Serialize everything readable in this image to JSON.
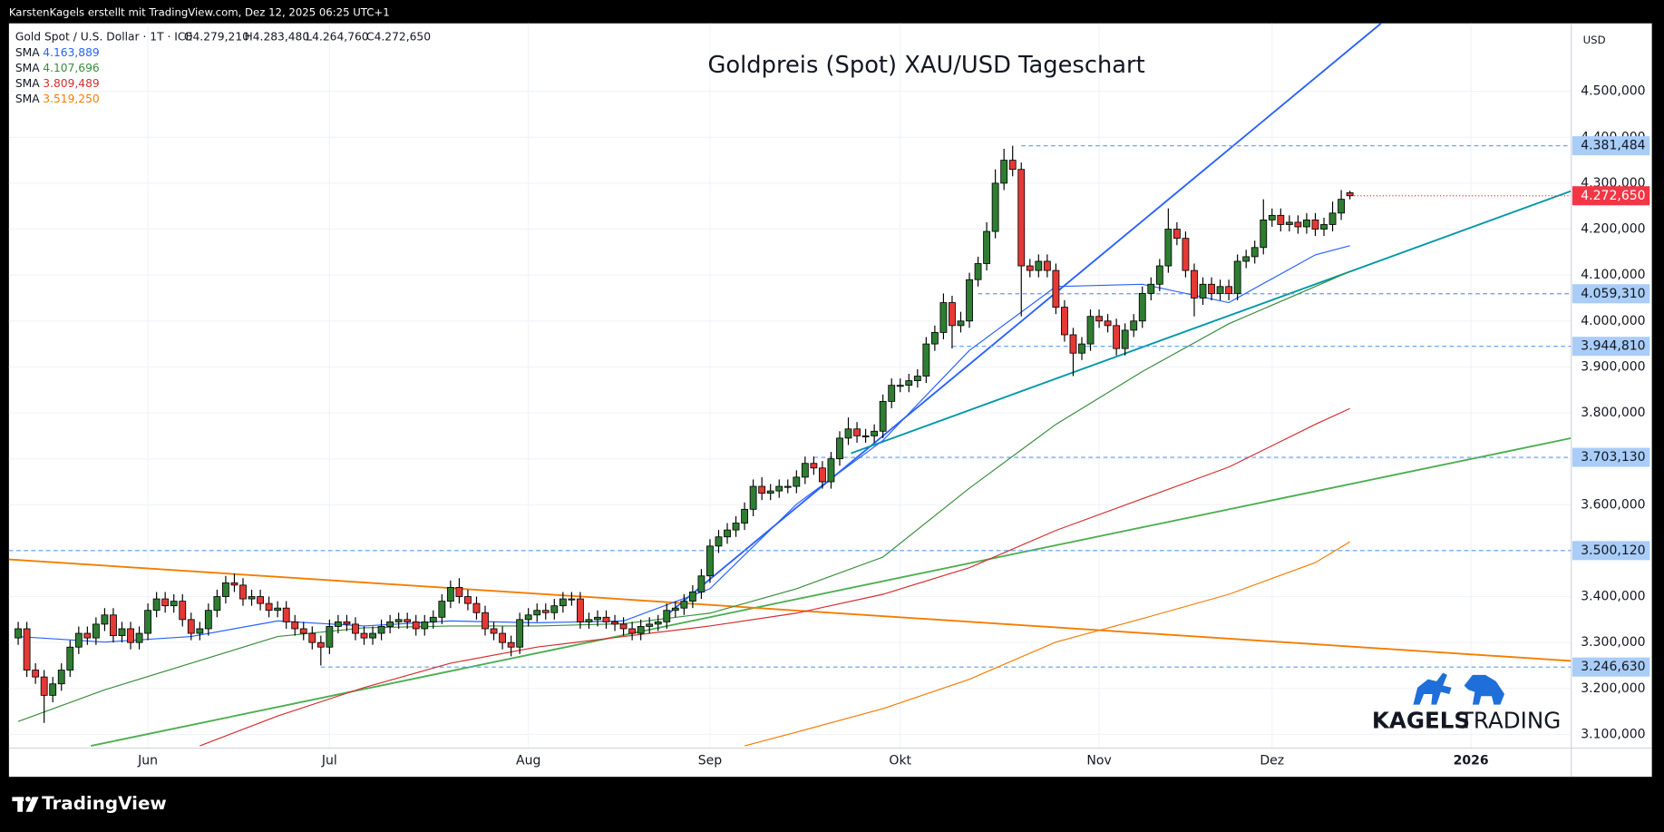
{
  "attribution": "KarstenKagels erstellt mit TradingView.com, Dez 12, 2025 06:25 UTC+1",
  "brand": "TradingView",
  "logo": {
    "line1": "KAGELS",
    "line2": "TRADING"
  },
  "chart_data": {
    "type": "candlestick",
    "title": "Goldpreis (Spot) XAU/USD Tageschart",
    "symbol": "Gold Spot / U.S. Dollar · 1T · ICE",
    "ohlc_labels": [
      "O4.279,210",
      "H4.283,480",
      "L4.264,760",
      "C4.272,650"
    ],
    "currency": "USD",
    "up_color": "#2e7d32",
    "down_color": "#e53935",
    "open": [
      3310,
      3330,
      3240,
      3225,
      3185,
      3210,
      3240,
      3290,
      3320,
      3310,
      3340,
      3360,
      3315,
      3330,
      3300,
      3320,
      3370,
      3395,
      3380,
      3390,
      3350,
      3320,
      3330,
      3370,
      3400,
      3430,
      3425,
      3395,
      3400,
      3385,
      3370,
      3375,
      3345,
      3330,
      3320,
      3300,
      3290,
      3335,
      3345,
      3340,
      3320,
      3310,
      3320,
      3335,
      3345,
      3350,
      3345,
      3330,
      3345,
      3355,
      3390,
      3420,
      3400,
      3385,
      3365,
      3330,
      3320,
      3300,
      3290,
      3350,
      3360,
      3370,
      3365,
      3380,
      3395,
      3395,
      3345,
      3350,
      3355,
      3345,
      3340,
      3330,
      3320,
      3335,
      3340,
      3345,
      3370,
      3375,
      3390,
      3410,
      3445,
      3510,
      3530,
      3545,
      3560,
      3590,
      3640,
      3625,
      3630,
      3640,
      3640,
      3660,
      3690,
      3680,
      3650,
      3700,
      3745,
      3765,
      3750,
      3750,
      3760,
      3825,
      3860,
      3860,
      3870,
      3880,
      3950,
      3975,
      4040,
      3990,
      4000,
      4090,
      4125,
      4195,
      4300,
      4350,
      4330,
      4120,
      4110,
      4130,
      4110,
      4030,
      3970,
      3930,
      3950,
      4010,
      4000,
      3990,
      3940,
      3980,
      4000,
      4060,
      4080,
      4120,
      4200,
      4180,
      4110,
      4050,
      4080,
      4060,
      4075,
      4060,
      4130,
      4140,
      4160,
      4220,
      4230,
      4210,
      4215,
      4205,
      4220,
      4200,
      4210,
      4235,
      4279.21
    ],
    "high": [
      3345,
      3345,
      3255,
      3240,
      3225,
      3255,
      3305,
      3335,
      3335,
      3355,
      3375,
      3375,
      3345,
      3345,
      3335,
      3385,
      3410,
      3410,
      3405,
      3405,
      3365,
      3345,
      3385,
      3415,
      3445,
      3450,
      3440,
      3415,
      3415,
      3400,
      3390,
      3390,
      3360,
      3345,
      3335,
      3315,
      3350,
      3360,
      3360,
      3355,
      3335,
      3335,
      3350,
      3360,
      3365,
      3365,
      3360,
      3360,
      3370,
      3405,
      3435,
      3440,
      3415,
      3400,
      3380,
      3345,
      3335,
      3315,
      3365,
      3375,
      3385,
      3385,
      3395,
      3410,
      3410,
      3410,
      3365,
      3370,
      3370,
      3360,
      3355,
      3345,
      3350,
      3355,
      3360,
      3385,
      3390,
      3405,
      3425,
      3460,
      3525,
      3545,
      3560,
      3575,
      3605,
      3655,
      3660,
      3645,
      3655,
      3655,
      3675,
      3705,
      3705,
      3695,
      3715,
      3760,
      3790,
      3780,
      3765,
      3775,
      3840,
      3875,
      3875,
      3885,
      3895,
      3965,
      3990,
      4060,
      4055,
      4020,
      4105,
      4140,
      4215,
      4330,
      4375,
      4381.484,
      4345,
      4135,
      4145,
      4145,
      4125,
      4045,
      3985,
      3965,
      4025,
      4025,
      4015,
      4005,
      3995,
      4015,
      4075,
      4095,
      4135,
      4245,
      4215,
      4195,
      4125,
      4095,
      4095,
      4090,
      4090,
      4145,
      4155,
      4175,
      4265,
      4245,
      4245,
      4230,
      4230,
      4235,
      4235,
      4225,
      4260,
      4285,
      4283.48
    ],
    "low": [
      3295,
      3225,
      3210,
      3125,
      3170,
      3195,
      3225,
      3275,
      3295,
      3295,
      3325,
      3300,
      3300,
      3285,
      3285,
      3305,
      3355,
      3365,
      3365,
      3335,
      3305,
      3305,
      3315,
      3355,
      3385,
      3410,
      3380,
      3380,
      3370,
      3355,
      3355,
      3330,
      3315,
      3305,
      3285,
      3250,
      3275,
      3320,
      3325,
      3305,
      3295,
      3295,
      3305,
      3320,
      3330,
      3330,
      3315,
      3315,
      3330,
      3340,
      3375,
      3385,
      3370,
      3350,
      3315,
      3305,
      3285,
      3270,
      3275,
      3335,
      3345,
      3350,
      3350,
      3365,
      3380,
      3330,
      3330,
      3335,
      3330,
      3325,
      3315,
      3305,
      3305,
      3320,
      3325,
      3330,
      3355,
      3360,
      3375,
      3395,
      3430,
      3495,
      3515,
      3530,
      3545,
      3575,
      3610,
      3610,
      3615,
      3625,
      3625,
      3645,
      3665,
      3635,
      3635,
      3685,
      3730,
      3735,
      3735,
      3735,
      3745,
      3810,
      3845,
      3845,
      3855,
      3865,
      3935,
      3960,
      3940,
      3975,
      3985,
      4075,
      4110,
      4180,
      4285,
      4315,
      4010,
      4095,
      4095,
      4095,
      4015,
      3955,
      3880,
      3915,
      3935,
      3985,
      3975,
      3925,
      3925,
      3965,
      3985,
      4045,
      4065,
      4105,
      4165,
      4095,
      4010,
      4035,
      4045,
      4045,
      4045,
      4045,
      4115,
      4125,
      4145,
      4205,
      4195,
      4195,
      4190,
      4190,
      4185,
      4185,
      4195,
      4220,
      4264.76
    ],
    "close": [
      3330,
      3240,
      3225,
      3185,
      3210,
      3240,
      3290,
      3320,
      3310,
      3340,
      3360,
      3315,
      3330,
      3300,
      3320,
      3370,
      3395,
      3380,
      3390,
      3350,
      3320,
      3330,
      3370,
      3400,
      3430,
      3425,
      3395,
      3400,
      3385,
      3370,
      3375,
      3345,
      3330,
      3320,
      3300,
      3290,
      3335,
      3345,
      3340,
      3320,
      3310,
      3320,
      3335,
      3345,
      3350,
      3345,
      3330,
      3345,
      3355,
      3390,
      3420,
      3400,
      3385,
      3365,
      3330,
      3320,
      3300,
      3290,
      3350,
      3360,
      3370,
      3365,
      3380,
      3395,
      3395,
      3345,
      3350,
      3355,
      3345,
      3340,
      3330,
      3320,
      3335,
      3340,
      3345,
      3370,
      3375,
      3390,
      3410,
      3445,
      3510,
      3530,
      3545,
      3560,
      3590,
      3640,
      3625,
      3630,
      3640,
      3640,
      3660,
      3690,
      3680,
      3650,
      3700,
      3745,
      3765,
      3750,
      3750,
      3760,
      3825,
      3860,
      3860,
      3870,
      3880,
      3950,
      3975,
      4040,
      3990,
      4000,
      4090,
      4125,
      4195,
      4300,
      4350,
      4330,
      4120,
      4110,
      4130,
      4110,
      4030,
      3970,
      3930,
      3950,
      4010,
      4000,
      3990,
      3940,
      3980,
      4000,
      4060,
      4080,
      4120,
      4200,
      4180,
      4110,
      4050,
      4080,
      4060,
      4075,
      4060,
      4130,
      4140,
      4160,
      4220,
      4230,
      4210,
      4215,
      4205,
      4220,
      4200,
      4210,
      4235,
      4265,
      4272.65
    ],
    "indicators": [
      {
        "name": "SMA",
        "color": "#2962ff",
        "value_label": "4.163,889",
        "x": [
          0,
          10,
          20,
          30,
          40,
          50,
          60,
          70,
          80,
          90,
          100,
          110,
          120,
          130,
          140,
          150,
          154
        ],
        "values": [
          3313,
          3301,
          3313,
          3347,
          3336,
          3347,
          3343,
          3347,
          3417,
          3601,
          3740,
          3936,
          4075,
          4080,
          4040,
          4144,
          4163.889
        ]
      },
      {
        "name": "SMA",
        "color": "#388e3c",
        "value_label": "4.107,696",
        "x": [
          0,
          10,
          20,
          30,
          40,
          50,
          60,
          70,
          80,
          90,
          100,
          110,
          120,
          130,
          140,
          150,
          154
        ],
        "values": [
          3128,
          3197,
          3255,
          3313,
          3332,
          3336,
          3336,
          3341,
          3364,
          3417,
          3486,
          3636,
          3775,
          3890,
          3994,
          4075,
          4107.696
        ]
      },
      {
        "name": "SMA",
        "color": "#d32f2f",
        "value_label": "3.809,489",
        "x": [
          21,
          30,
          40,
          50,
          60,
          70,
          80,
          90,
          100,
          110,
          120,
          130,
          140,
          150,
          154
        ],
        "values": [
          3075,
          3140,
          3202,
          3255,
          3290,
          3313,
          3336,
          3364,
          3405,
          3463,
          3544,
          3613,
          3682,
          3775,
          3809.489
        ]
      },
      {
        "name": "SMA",
        "color": "#f57c00",
        "value_label": "3.519,250",
        "x": [
          84,
          90,
          100,
          110,
          120,
          130,
          140,
          150,
          154
        ],
        "values": [
          3075,
          3105,
          3156,
          3220,
          3301,
          3352,
          3405,
          3474,
          3519.25
        ]
      }
    ],
    "trend_lines": [
      {
        "color": "#2962ff",
        "x": [
          75,
          157.6
        ],
        "values": [
          3360,
          4648
        ]
      },
      {
        "color": "#0097a7",
        "x": [
          96.3,
          179.6
        ],
        "values": [
          3712,
          4283
        ]
      },
      {
        "color": "#4caf50",
        "x": [
          8.4,
          179.6
        ],
        "values": [
          3075,
          3745
        ]
      },
      {
        "color": "#f57c00",
        "x": [
          -1.07,
          179.6
        ],
        "values": [
          3481,
          3260
        ]
      }
    ],
    "price_line_color": "#5b9cf6",
    "price_lines": [
      {
        "value": 4381.484,
        "label": "4.381,484",
        "x_from": 116
      },
      {
        "value": 4059.31,
        "label": "4.059,310",
        "x_from": 111
      },
      {
        "value": 3944.81,
        "label": "3.944,810",
        "x_from": 108
      },
      {
        "value": 3703.13,
        "label": "3.703,130",
        "x_from": 92
      },
      {
        "value": 3500.12,
        "label": "3.500,120",
        "x_from": -1.07
      },
      {
        "value": 3246.63,
        "label": "3.246,630",
        "x_from": 35
      }
    ],
    "last_price": {
      "value": 4272.65,
      "label": "4.272,650",
      "color": "#f23645"
    },
    "xlim": [
      -1.07,
      179.6
    ],
    "xticks": [
      {
        "value": 15,
        "label": "Jun"
      },
      {
        "value": 36,
        "label": "Jul"
      },
      {
        "value": 59,
        "label": "Aug"
      },
      {
        "value": 80,
        "label": "Sep"
      },
      {
        "value": 102,
        "label": "Okt"
      },
      {
        "value": 125,
        "label": "Nov"
      },
      {
        "value": 145,
        "label": "Dez"
      },
      {
        "value": 168,
        "label": "2026",
        "bold": true
      }
    ],
    "ylim": [
      3070,
      4648
    ],
    "yticks": [
      {
        "value": 3100,
        "label": "3.100,000"
      },
      {
        "value": 3200,
        "label": "3.200,000"
      },
      {
        "value": 3300,
        "label": "3.300,000"
      },
      {
        "value": 3400,
        "label": "3.400,000"
      },
      {
        "value": 3500,
        "label": "3.500,000"
      },
      {
        "value": 3600,
        "label": "3.600,000"
      },
      {
        "value": 3700,
        "label": "3.700,000"
      },
      {
        "value": 3800,
        "label": "3.800,000"
      },
      {
        "value": 3900,
        "label": "3.900,000"
      },
      {
        "value": 4000,
        "label": "4.000,000"
      },
      {
        "value": 4100,
        "label": "4.100,000"
      },
      {
        "value": 4200,
        "label": "4.200,000"
      },
      {
        "value": 4300,
        "label": "4.300,000"
      },
      {
        "value": 4400,
        "label": "4.400,000"
      },
      {
        "value": 4500,
        "label": "4.500,000"
      }
    ],
    "grid": true
  }
}
